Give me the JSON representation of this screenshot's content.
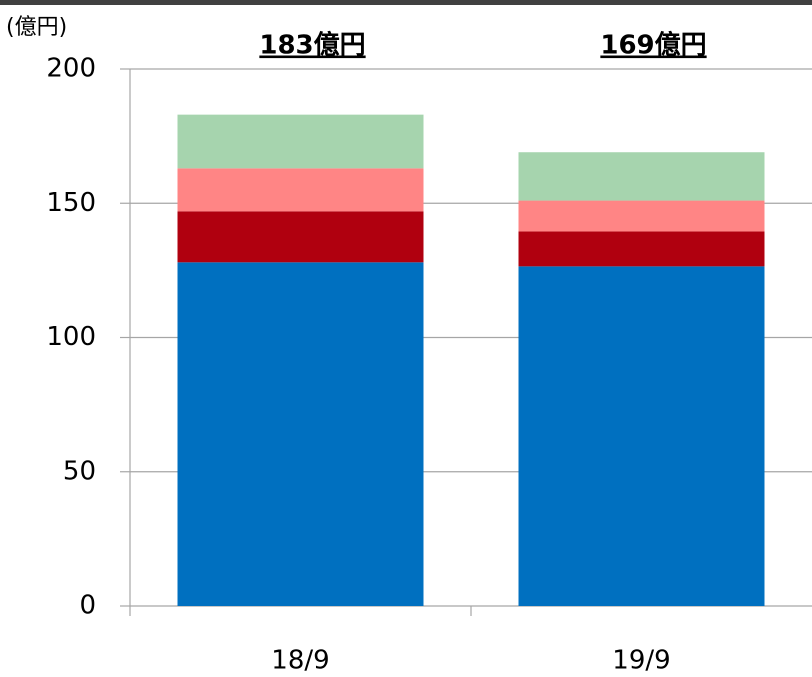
{
  "chart_data": {
    "type": "stacked_bar",
    "y_label": "(億円)",
    "categories": [
      "18/9",
      "19/9"
    ],
    "annotations": [
      "183億円",
      "169億円"
    ],
    "series": [
      {
        "color": "#0070c0",
        "values": [
          128,
          126.5
        ]
      },
      {
        "color": "#b0000f",
        "values": [
          19,
          13
        ]
      },
      {
        "color": "#ff8585",
        "values": [
          16,
          11.5
        ]
      },
      {
        "color": "#a6d4ae",
        "values": [
          20,
          18
        ]
      }
    ],
    "ylim": [
      0,
      200
    ],
    "yticks": [
      0,
      50,
      100,
      150,
      200
    ],
    "grid": true
  }
}
